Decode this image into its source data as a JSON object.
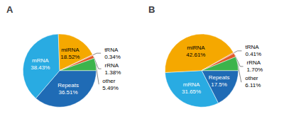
{
  "chart_data": [
    {
      "type": "pie",
      "title": "A",
      "categories": [
        "Repeats",
        "mRNA",
        "miRNA",
        "tRNA",
        "rRNA",
        "other"
      ],
      "values": [
        36.51,
        38.43,
        18.52,
        0.34,
        1.38,
        5.49
      ],
      "value_labels": [
        "36.51%",
        "38.43%",
        "18.52%",
        "0.34%",
        "1.38%",
        "5.49%"
      ],
      "colors": [
        "#1f6bb5",
        "#29abe2",
        "#f5a800",
        "#e05a2b",
        "#e05a2b",
        "#3cb44b"
      ],
      "data_labels": true
    },
    {
      "type": "pie",
      "title": "B",
      "categories": [
        "Repeats",
        "mRNA",
        "miRNA",
        "tRNA",
        "rRNA",
        "other"
      ],
      "values": [
        17.5,
        31.65,
        42.61,
        0.41,
        1.7,
        6.11
      ],
      "value_labels": [
        "17.5%",
        "31.65%",
        "42.61%",
        "0.41%",
        "1.70%",
        "6.11%"
      ],
      "colors": [
        "#1f6bb5",
        "#29abe2",
        "#f5a800",
        "#e05a2b",
        "#e05a2b",
        "#3cb44b"
      ],
      "data_labels": true
    }
  ]
}
